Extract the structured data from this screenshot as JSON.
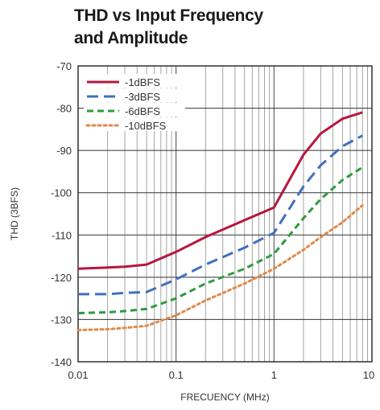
{
  "chart_data": {
    "type": "line",
    "title_line1": "THD vs Input Frequency",
    "title_line2": "and Amplitude",
    "xlabel": "FRECUENCY (MHz)",
    "ylabel": "THD (3BFS)",
    "x_scale": "log",
    "xlim": [
      0.01,
      10
    ],
    "ylim": [
      -140,
      -70
    ],
    "x_ticks": [
      {
        "value": 0.01,
        "label": "0.01"
      },
      {
        "value": 0.1,
        "label": "0.1"
      },
      {
        "value": 1,
        "label": "1"
      },
      {
        "value": 10,
        "label": "10"
      }
    ],
    "y_ticks": [
      {
        "value": -70,
        "label": "-70"
      },
      {
        "value": -80,
        "label": "-80"
      },
      {
        "value": -90,
        "label": "-90"
      },
      {
        "value": -100,
        "label": "-100"
      },
      {
        "value": -110,
        "label": "-110"
      },
      {
        "value": -120,
        "label": "-120"
      },
      {
        "value": -130,
        "label": "-130"
      },
      {
        "value": -140,
        "label": "-140"
      }
    ],
    "grid": true,
    "legend_position": "top-left",
    "series": [
      {
        "name": "-1dBFS",
        "color": "#b5173f",
        "dash": "solid",
        "x": [
          0.01,
          0.02,
          0.03,
          0.05,
          0.1,
          0.2,
          0.5,
          1,
          2,
          3,
          5,
          8
        ],
        "y": [
          -118,
          -117.7,
          -117.5,
          -117,
          -114,
          -110.5,
          -106.5,
          -103.5,
          -91,
          -86,
          -82.5,
          -81
        ]
      },
      {
        "name": "-3dBFS",
        "color": "#3f6fbf",
        "dash": "long",
        "x": [
          0.01,
          0.02,
          0.03,
          0.05,
          0.1,
          0.2,
          0.5,
          1,
          2,
          3,
          5,
          8
        ],
        "y": [
          -124,
          -124,
          -123.7,
          -123.5,
          -120.5,
          -117,
          -113,
          -109.5,
          -98.5,
          -93.5,
          -89,
          -86.5
        ]
      },
      {
        "name": "-6dBFS",
        "color": "#2f9a3e",
        "dash": "medium",
        "x": [
          0.01,
          0.02,
          0.03,
          0.05,
          0.1,
          0.2,
          0.5,
          1,
          2,
          3,
          5,
          8
        ],
        "y": [
          -128.5,
          -128.3,
          -128,
          -127.5,
          -125,
          -121.5,
          -118,
          -114.5,
          -106,
          -101.5,
          -97,
          -94
        ]
      },
      {
        "name": "-10dBFS",
        "color": "#e08a4a",
        "dash": "dotted",
        "x": [
          0.01,
          0.02,
          0.03,
          0.05,
          0.1,
          0.2,
          0.5,
          1,
          2,
          3,
          5,
          8
        ],
        "y": [
          -132.5,
          -132.3,
          -132,
          -131.5,
          -129,
          -125.5,
          -121.5,
          -118,
          -113.5,
          -110.5,
          -107,
          -103
        ]
      }
    ]
  }
}
